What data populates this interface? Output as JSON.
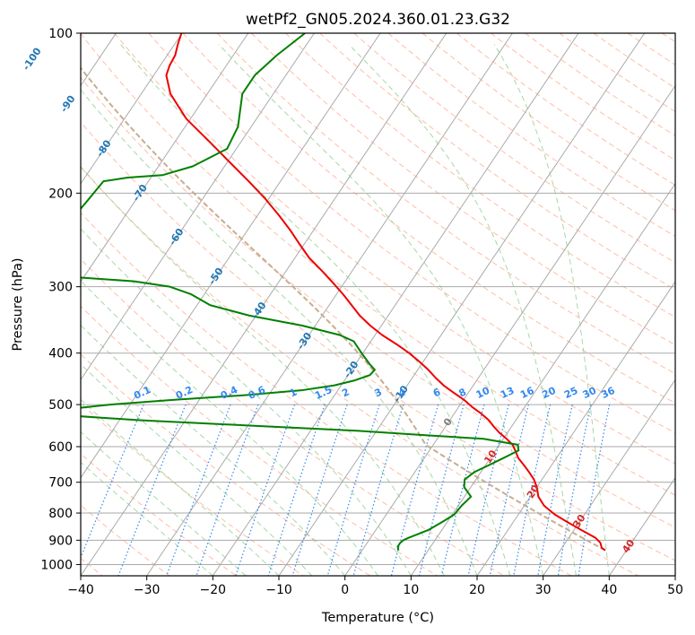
{
  "chart_data": {
    "type": "line",
    "title": "wetPf2_GN05.2024.360.01.23.G32",
    "xlabel": "Temperature (°C)",
    "ylabel": "Pressure (hPa)",
    "xlim": [
      -40,
      50
    ],
    "ylim": [
      1050,
      100
    ],
    "y_scale": "log",
    "grid": true,
    "x_ticks": [
      -40,
      -30,
      -20,
      -10,
      0,
      10,
      20,
      30,
      40,
      50
    ],
    "y_ticks": [
      100,
      200,
      300,
      400,
      500,
      600,
      700,
      800,
      900,
      1000
    ],
    "isotherm_labels": [
      {
        "value": -100,
        "p": 112
      },
      {
        "value": -90,
        "p": 136
      },
      {
        "value": -80,
        "p": 165
      },
      {
        "value": -70,
        "p": 200
      },
      {
        "value": -60,
        "p": 242
      },
      {
        "value": -50,
        "p": 287
      },
      {
        "value": -40,
        "p": 333
      },
      {
        "value": -30,
        "p": 380
      },
      {
        "value": -20,
        "p": 430
      },
      {
        "value": -10,
        "p": 478
      },
      {
        "value": 0,
        "p": 540
      },
      {
        "value": 10,
        "p": 628
      },
      {
        "value": 20,
        "p": 730
      },
      {
        "value": 30,
        "p": 830
      },
      {
        "value": 40,
        "p": 925
      }
    ],
    "mixing_ratio_labels": [
      "0.1",
      "0.2",
      "0.4",
      "0.6",
      "1",
      "1.5",
      "2",
      "3",
      "4",
      "6",
      "8",
      "10",
      "13",
      "16",
      "20",
      "25",
      "30",
      "36"
    ],
    "series": [
      {
        "name": "Temperature",
        "color": "#ee0000",
        "points": [
          [
            36.8,
            940
          ],
          [
            36.0,
            930
          ],
          [
            35.3,
            910
          ],
          [
            34.0,
            890
          ],
          [
            31.0,
            860
          ],
          [
            28.0,
            830
          ],
          [
            25.5,
            805
          ],
          [
            23.0,
            775
          ],
          [
            21.2,
            745
          ],
          [
            20.0,
            715
          ],
          [
            18.8,
            692
          ],
          [
            17.3,
            670
          ],
          [
            15.8,
            650
          ],
          [
            14.2,
            630
          ],
          [
            13.0,
            610
          ],
          [
            12.0,
            595
          ],
          [
            10.5,
            580
          ],
          [
            8.8,
            565
          ],
          [
            7.3,
            550
          ],
          [
            5.9,
            535
          ],
          [
            4.1,
            520
          ],
          [
            2.0,
            505
          ],
          [
            0.1,
            490
          ],
          [
            -2.2,
            475
          ],
          [
            -4.5,
            460
          ],
          [
            -6.5,
            445
          ],
          [
            -8.4,
            430
          ],
          [
            -10.6,
            415
          ],
          [
            -13.0,
            400
          ],
          [
            -15.8,
            385
          ],
          [
            -18.9,
            370
          ],
          [
            -21.7,
            355
          ],
          [
            -24.3,
            340
          ],
          [
            -26.6,
            325
          ],
          [
            -29.0,
            310
          ],
          [
            -31.7,
            295
          ],
          [
            -34.6,
            280
          ],
          [
            -37.8,
            265
          ],
          [
            -40.6,
            250
          ],
          [
            -43.5,
            235
          ],
          [
            -46.8,
            220
          ],
          [
            -50.5,
            205
          ],
          [
            -54.8,
            190
          ],
          [
            -59.6,
            175
          ],
          [
            -64.8,
            160
          ],
          [
            -70.6,
            145
          ],
          [
            -75.6,
            130
          ],
          [
            -78.1,
            120
          ],
          [
            -78.6,
            115
          ],
          [
            -78.8,
            110
          ],
          [
            -79.5,
            105
          ],
          [
            -80.1,
            100
          ]
        ]
      },
      {
        "name": "Dewpoint",
        "color": "#008000",
        "points": [
          [
            5.5,
            940
          ],
          [
            5.0,
            925
          ],
          [
            5.0,
            910
          ],
          [
            5.2,
            900
          ],
          [
            5.8,
            890
          ],
          [
            8.0,
            860
          ],
          [
            9.3,
            830
          ],
          [
            10.3,
            805
          ],
          [
            10.5,
            775
          ],
          [
            11.0,
            745
          ],
          [
            9.0,
            715
          ],
          [
            8.3,
            692
          ],
          [
            9.0,
            670
          ],
          [
            10.5,
            650
          ],
          [
            12.0,
            630
          ],
          [
            13.5,
            610
          ],
          [
            12.8,
            595
          ],
          [
            7.0,
            580
          ],
          [
            -3.0,
            570
          ],
          [
            -13.0,
            560
          ],
          [
            -30.5,
            547
          ],
          [
            -47.0,
            535
          ],
          [
            -57.4,
            525
          ],
          [
            -59.8,
            520
          ],
          [
            -60.5,
            515
          ],
          [
            -59.0,
            510
          ],
          [
            -53.0,
            500
          ],
          [
            -44.0,
            490
          ],
          [
            -33.6,
            480
          ],
          [
            -25.5,
            470
          ],
          [
            -21.0,
            460
          ],
          [
            -18.4,
            450
          ],
          [
            -16.7,
            440
          ],
          [
            -16.5,
            430
          ],
          [
            -17.8,
            420
          ],
          [
            -20.2,
            400
          ],
          [
            -22.6,
            380
          ],
          [
            -25.3,
            370
          ],
          [
            -32.0,
            355
          ],
          [
            -41.0,
            340
          ],
          [
            -48.0,
            325
          ],
          [
            -52.0,
            310
          ],
          [
            -56.0,
            300
          ],
          [
            -62.0,
            293
          ],
          [
            -73.0,
            287
          ],
          [
            -80.0,
            285
          ],
          [
            -82.0,
            275
          ],
          [
            -82.0,
            265
          ],
          [
            -80.2,
            250
          ],
          [
            -78.6,
            235
          ],
          [
            -77.6,
            220
          ],
          [
            -77.2,
            205
          ],
          [
            -76.8,
            190
          ],
          [
            -73.5,
            187
          ],
          [
            -68.5,
            185
          ],
          [
            -64.8,
            178
          ],
          [
            -61.4,
            165
          ],
          [
            -62.0,
            150
          ],
          [
            -64.7,
            130
          ],
          [
            -64.7,
            120
          ],
          [
            -63.4,
            110
          ],
          [
            -61.4,
            100
          ]
        ]
      }
    ],
    "colors": {
      "temperature": "#ee0000",
      "dewpoint": "#008000",
      "grid": "#aaaaaa",
      "dry_adiabat": "#ff9977",
      "moist_adiabat": "#88cc88",
      "mixing_ratio": "#3388ee",
      "isotherm_label": "#1f77b4",
      "warm_isotherm_label": "#d62728",
      "zero_isotherm_label": "#7f7f7f",
      "parcel_curve": "#c8ad8f"
    }
  }
}
